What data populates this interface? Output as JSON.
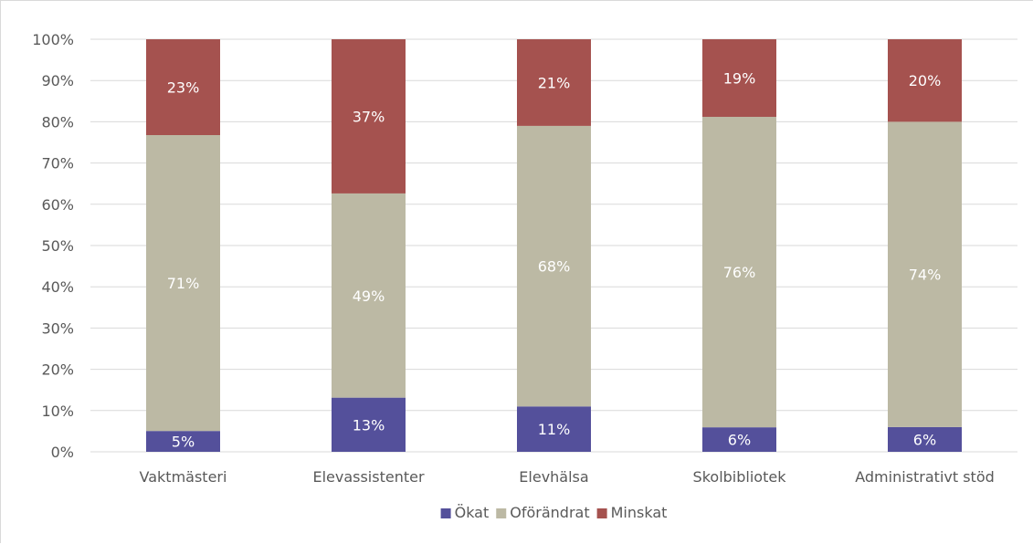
{
  "chart_data": {
    "type": "bar",
    "stacked": true,
    "percent_stacked": true,
    "categories": [
      "Vaktmästeri",
      "Elevassistenter",
      "Elevhälsa",
      "Skolbibliotek",
      "Administrativt stöd"
    ],
    "series": [
      {
        "name": "Ökat",
        "color": "#54509b",
        "values": [
          5,
          13,
          11,
          6,
          6
        ]
      },
      {
        "name": "Oförändrat",
        "color": "#bcb9a4",
        "values": [
          71,
          49,
          68,
          76,
          74
        ]
      },
      {
        "name": "Minskat",
        "color": "#a5524f",
        "values": [
          23,
          37,
          21,
          19,
          20
        ]
      }
    ],
    "data_labels": [
      [
        "5%",
        "13%",
        "11%",
        "6%",
        "6%"
      ],
      [
        "71%",
        "49%",
        "68%",
        "76%",
        "74%"
      ],
      [
        "23%",
        "37%",
        "21%",
        "19%",
        "20%"
      ]
    ],
    "y_ticks": [
      "0%",
      "10%",
      "20%",
      "30%",
      "40%",
      "50%",
      "60%",
      "70%",
      "80%",
      "90%",
      "100%"
    ],
    "ylim": [
      0,
      100
    ],
    "grid": true,
    "legend_position": "bottom"
  }
}
